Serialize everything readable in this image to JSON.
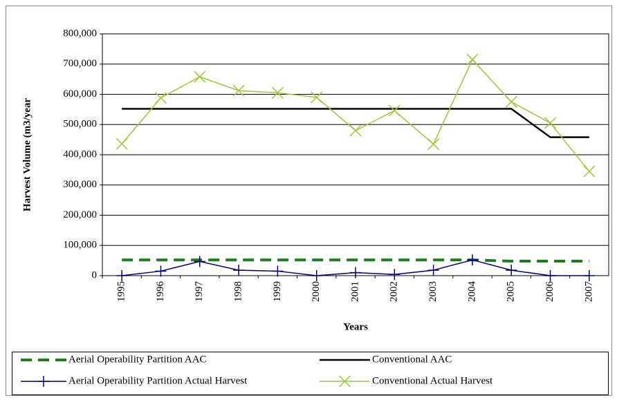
{
  "chart_data": {
    "type": "line",
    "x_label": "Years",
    "y_label": "Harvest Volume (m3/year",
    "categories": [
      "1995",
      "1996",
      "1997",
      "1998",
      "1999",
      "2000",
      "2001",
      "2002",
      "2003",
      "2004",
      "2005",
      "2006",
      "2007"
    ],
    "ylim": [
      0,
      800000
    ],
    "yticks": [
      0,
      {
        "value": 100000,
        "label": "100,000"
      },
      {
        "value": 200000,
        "label": "200,000"
      },
      {
        "value": 300000,
        "label": "300,000"
      },
      {
        "value": 400000,
        "label": "400,000"
      },
      {
        "value": 500000,
        "label": "500,000"
      },
      {
        "value": 600000,
        "label": "600,000"
      },
      {
        "value": 700000,
        "label": "700,000"
      },
      {
        "value": 800000,
        "label": "800,000"
      }
    ],
    "grid": true,
    "legend": "bottom",
    "series": [
      {
        "name": "Aerial Operability Partition AAC",
        "color": "#1e7b1e",
        "dash": true,
        "marker": null,
        "values": [
          52000,
          52000,
          52000,
          52000,
          52000,
          52000,
          52000,
          52000,
          52000,
          52000,
          48000,
          48000,
          48000
        ]
      },
      {
        "name": "Conventional  AAC",
        "color": "#000000",
        "dash": false,
        "marker": null,
        "values": [
          552000,
          552000,
          552000,
          552000,
          552000,
          552000,
          552000,
          552000,
          552000,
          552000,
          552000,
          458000,
          458000
        ]
      },
      {
        "name": "Aerial Operability Partition Actual Harvest",
        "color": "#000080",
        "dash": false,
        "marker": "plus",
        "values": [
          0,
          15000,
          47000,
          18000,
          15000,
          0,
          10000,
          4000,
          18000,
          52000,
          18000,
          0,
          0
        ]
      },
      {
        "name": "Conventional  Actual Harvest",
        "color": "#99cc33",
        "dash": false,
        "marker": "x",
        "values": [
          436000,
          588000,
          658000,
          612000,
          605000,
          590000,
          480000,
          546000,
          435000,
          715000,
          575000,
          505000,
          345000
        ]
      }
    ]
  }
}
